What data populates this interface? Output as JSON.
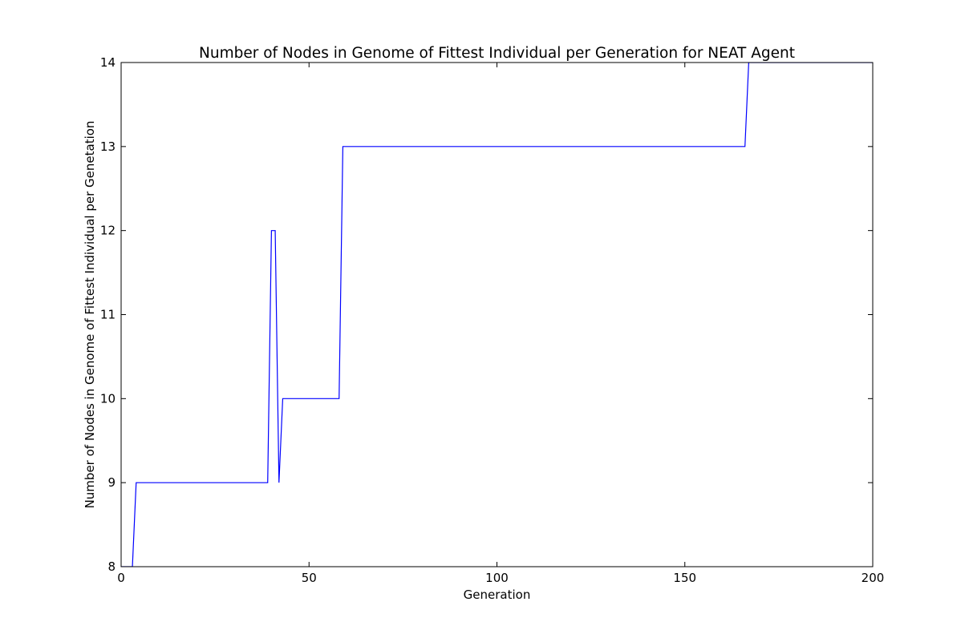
{
  "chart_data": {
    "type": "line",
    "title": "Number of Nodes in Genome of Fittest Individual per Generation for NEAT Agent",
    "xlabel": "Generation",
    "ylabel": "Number of Nodes in Genome of Fittest Individual per Genetation",
    "xlim": [
      0,
      200
    ],
    "ylim": [
      8,
      14
    ],
    "xticks": [
      0,
      50,
      100,
      150,
      200
    ],
    "yticks": [
      8,
      9,
      10,
      11,
      12,
      13,
      14
    ],
    "grid": false,
    "line_color": "#0000ff",
    "series": [
      {
        "x": [
          0,
          3,
          4,
          39,
          40,
          41,
          42,
          43,
          58,
          59,
          166,
          167,
          168,
          200
        ],
        "y": [
          8,
          8,
          9,
          9,
          12,
          12,
          9,
          10,
          10,
          13,
          13,
          14,
          14,
          14
        ]
      }
    ]
  }
}
